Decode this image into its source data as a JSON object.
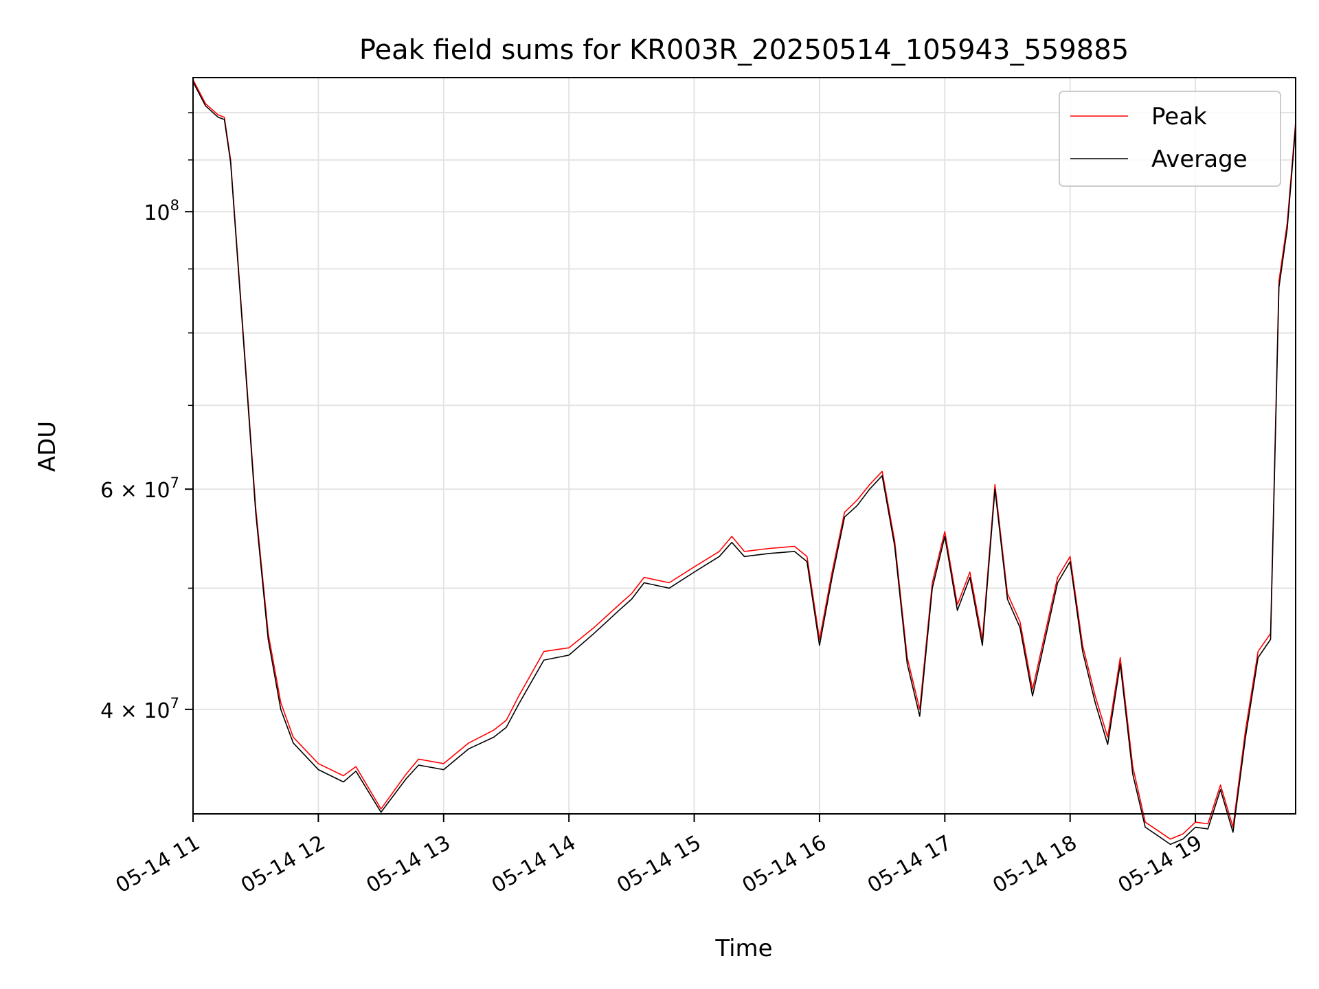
{
  "chart_data": {
    "type": "line",
    "title": "Peak field sums for KR003R_20250514_105943_559885",
    "xlabel": "Time",
    "ylabel": "ADU",
    "y_scale": "log",
    "ylim": [
      33000000,
      128000000
    ],
    "xlim": [
      "2025-05-14 11:00",
      "2025-05-14 19:48"
    ],
    "grid": true,
    "legend_position": "top-right",
    "x_tick_labels": [
      "05-14 11",
      "05-14 12",
      "05-14 13",
      "05-14 14",
      "05-14 15",
      "05-14 16",
      "05-14 17",
      "05-14 18",
      "05-14 19"
    ],
    "y_tick_labels": [
      {
        "value": 100000000,
        "base": "10",
        "exp": "8",
        "mantissa": ""
      },
      {
        "value": 60000000,
        "base": "10",
        "exp": "7",
        "mantissa": "6 × "
      },
      {
        "value": 40000000,
        "base": "10",
        "exp": "7",
        "mantissa": "4 × "
      }
    ],
    "x": [
      "2025-05-14 11:00",
      "2025-05-14 11:06",
      "2025-05-14 11:12",
      "2025-05-14 11:15",
      "2025-05-14 11:18",
      "2025-05-14 11:24",
      "2025-05-14 11:30",
      "2025-05-14 11:36",
      "2025-05-14 11:42",
      "2025-05-14 11:48",
      "2025-05-14 12:00",
      "2025-05-14 12:12",
      "2025-05-14 12:18",
      "2025-05-14 12:30",
      "2025-05-14 12:42",
      "2025-05-14 12:48",
      "2025-05-14 13:00",
      "2025-05-14 13:12",
      "2025-05-14 13:24",
      "2025-05-14 13:30",
      "2025-05-14 13:36",
      "2025-05-14 13:48",
      "2025-05-14 14:00",
      "2025-05-14 14:12",
      "2025-05-14 14:24",
      "2025-05-14 14:30",
      "2025-05-14 14:36",
      "2025-05-14 14:48",
      "2025-05-14 15:00",
      "2025-05-14 15:12",
      "2025-05-14 15:18",
      "2025-05-14 15:24",
      "2025-05-14 15:36",
      "2025-05-14 15:48",
      "2025-05-14 15:54",
      "2025-05-14 16:00",
      "2025-05-14 16:06",
      "2025-05-14 16:12",
      "2025-05-14 16:18",
      "2025-05-14 16:24",
      "2025-05-14 16:30",
      "2025-05-14 16:36",
      "2025-05-14 16:42",
      "2025-05-14 16:48",
      "2025-05-14 16:54",
      "2025-05-14 17:00",
      "2025-05-14 17:06",
      "2025-05-14 17:12",
      "2025-05-14 17:18",
      "2025-05-14 17:24",
      "2025-05-14 17:30",
      "2025-05-14 17:36",
      "2025-05-14 17:42",
      "2025-05-14 17:48",
      "2025-05-14 17:54",
      "2025-05-14 18:00",
      "2025-05-14 18:06",
      "2025-05-14 18:12",
      "2025-05-14 18:18",
      "2025-05-14 18:24",
      "2025-05-14 18:30",
      "2025-05-14 18:36",
      "2025-05-14 18:42",
      "2025-05-14 18:48",
      "2025-05-14 18:54",
      "2025-05-14 19:00",
      "2025-05-14 19:06",
      "2025-05-14 19:12",
      "2025-05-14 19:18",
      "2025-05-14 19:24",
      "2025-05-14 19:30",
      "2025-05-14 19:36",
      "2025-05-14 19:40",
      "2025-05-14 19:44",
      "2025-05-14 19:48"
    ],
    "series": [
      {
        "name": "Peak",
        "color": "#ff0000",
        "values": [
          127500000,
          122000000,
          119500000,
          119000000,
          110000000,
          80000000,
          58000000,
          46000000,
          40500000,
          38000000,
          36200000,
          35400000,
          36000000,
          33300000,
          35500000,
          36500000,
          36200000,
          37600000,
          38500000,
          39200000,
          41000000,
          44500000,
          44800000,
          46500000,
          48500000,
          49500000,
          51000000,
          50500000,
          52000000,
          53500000,
          55000000,
          53500000,
          53800000,
          54000000,
          53000000,
          45500000,
          51500000,
          57500000,
          58800000,
          60500000,
          62000000,
          54500000,
          44000000,
          40000000,
          50500000,
          55500000,
          48500000,
          51500000,
          45500000,
          60500000,
          49500000,
          47000000,
          41500000,
          46000000,
          51000000,
          53000000,
          45000000,
          41000000,
          38000000,
          44000000,
          36000000,
          32500000,
          32000000,
          31500000,
          31800000,
          32500000,
          32400000,
          34800000,
          32200000,
          38500000,
          44500000,
          46000000,
          88000000,
          98000000,
          118000000
        ]
      },
      {
        "name": "Average",
        "color": "#000000",
        "values": [
          127000000,
          121500000,
          119000000,
          118500000,
          109500000,
          79500000,
          57500000,
          45500000,
          40000000,
          37600000,
          35800000,
          35000000,
          35700000,
          33100000,
          35200000,
          36100000,
          35800000,
          37200000,
          38000000,
          38700000,
          40400000,
          43800000,
          44200000,
          46000000,
          48000000,
          49000000,
          50500000,
          50000000,
          51500000,
          53000000,
          54400000,
          53000000,
          53300000,
          53500000,
          52500000,
          45000000,
          51000000,
          57000000,
          58200000,
          60000000,
          61500000,
          54000000,
          43500000,
          39500000,
          50000000,
          55000000,
          48000000,
          51000000,
          45000000,
          60000000,
          49000000,
          46500000,
          41000000,
          45500000,
          50500000,
          52500000,
          44500000,
          40500000,
          37500000,
          43500000,
          35500000,
          32200000,
          31700000,
          31200000,
          31500000,
          32200000,
          32100000,
          34500000,
          31900000,
          38000000,
          44000000,
          45500000,
          87000000,
          97000000,
          117000000
        ]
      }
    ]
  }
}
